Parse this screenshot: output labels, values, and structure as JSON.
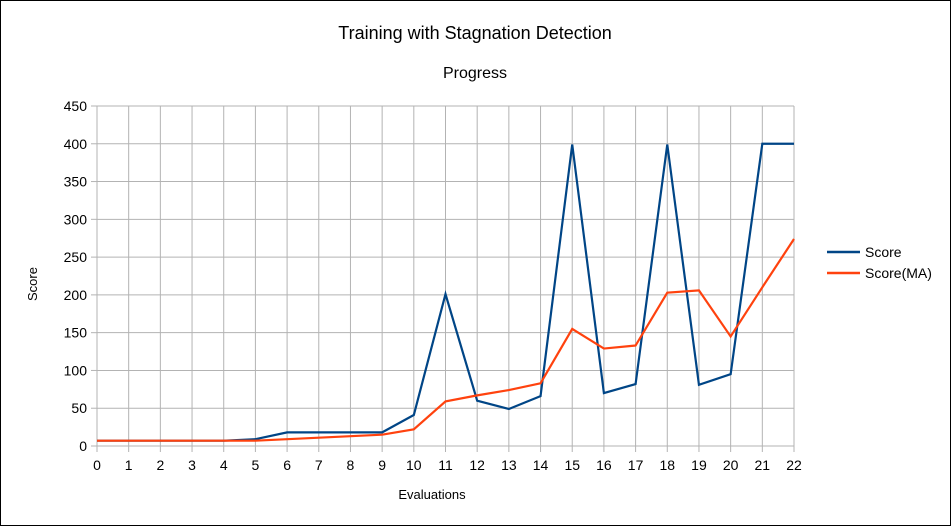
{
  "chart_data": {
    "type": "line",
    "title": "Training with Stagnation Detection",
    "subtitle": "Progress",
    "xlabel": "Evaluations",
    "ylabel": "Score",
    "x": [
      0,
      1,
      2,
      3,
      4,
      5,
      6,
      7,
      8,
      9,
      10,
      11,
      12,
      13,
      14,
      15,
      16,
      17,
      18,
      19,
      20,
      21,
      22
    ],
    "xlim": [
      0,
      22
    ],
    "ylim": [
      0,
      450
    ],
    "yticks": [
      0,
      50,
      100,
      150,
      200,
      250,
      300,
      350,
      400,
      450
    ],
    "grid": true,
    "legend_position": "right",
    "series": [
      {
        "name": "Score",
        "color": "#004586",
        "values": [
          7,
          7,
          7,
          7,
          7,
          9,
          18,
          18,
          18,
          18,
          41,
          201,
          60,
          49,
          66,
          399,
          70,
          82,
          399,
          81,
          95,
          400,
          400
        ]
      },
      {
        "name": "Score(MA)",
        "color": "#ff420e",
        "values": [
          7,
          7,
          7,
          7,
          7,
          7,
          9,
          11,
          13,
          15,
          22,
          59,
          67,
          74,
          83,
          155,
          129,
          133,
          203,
          206,
          145,
          210,
          274
        ]
      }
    ]
  }
}
